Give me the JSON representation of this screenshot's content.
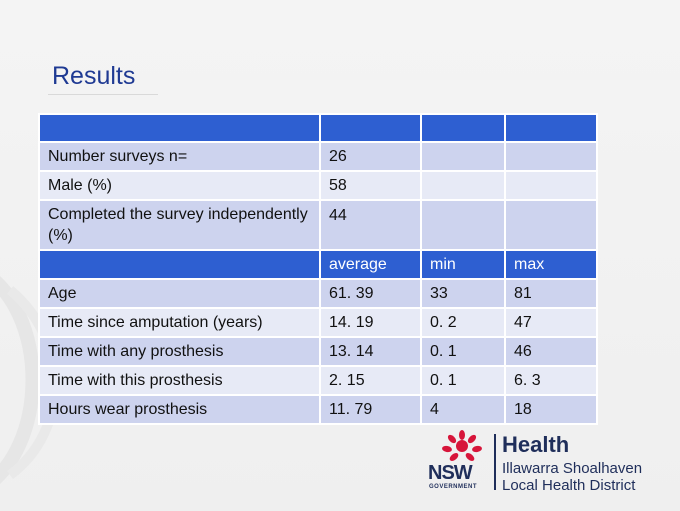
{
  "slide": {
    "title": "Results"
  },
  "summary_rows": [
    {
      "label": "Number surveys n=",
      "value": "26"
    },
    {
      "label": "Male (%)",
      "value": "58"
    },
    {
      "label": "Completed the survey independently (%)",
      "value": "44"
    }
  ],
  "stats_header": {
    "average": "average",
    "min": "min",
    "max": "max"
  },
  "stats_rows": [
    {
      "label": "Age",
      "average": "61. 39",
      "min": "33",
      "max": "81"
    },
    {
      "label": "Time since amputation (years)",
      "average": "14. 19",
      "min": "0. 2",
      "max": "47"
    },
    {
      "label": "Time with any prosthesis",
      "average": "13. 14",
      "min": "0. 1",
      "max": "46"
    },
    {
      "label": "Time with this prosthesis",
      "average": "2. 15",
      "min": "0. 1",
      "max": "6. 3"
    },
    {
      "label": "Hours wear prosthesis",
      "average": "11. 79",
      "min": "4",
      "max": "18"
    }
  ],
  "logo": {
    "health": "Health",
    "district_line1": "Illawarra Shoalhaven",
    "district_line2": "Local Health District",
    "nsw": "NSW",
    "government": "GOVERNMENT"
  },
  "colors": {
    "title": "#1f3a93",
    "header_blue": "#2e5fd1",
    "row_dark": "#cdd3ee",
    "row_light": "#e7eaf6",
    "logo_red": "#d7153a",
    "logo_navy": "#1f2e5a"
  },
  "icons": [
    "nsw-waratah-icon",
    "watermark-swirl-icon"
  ]
}
